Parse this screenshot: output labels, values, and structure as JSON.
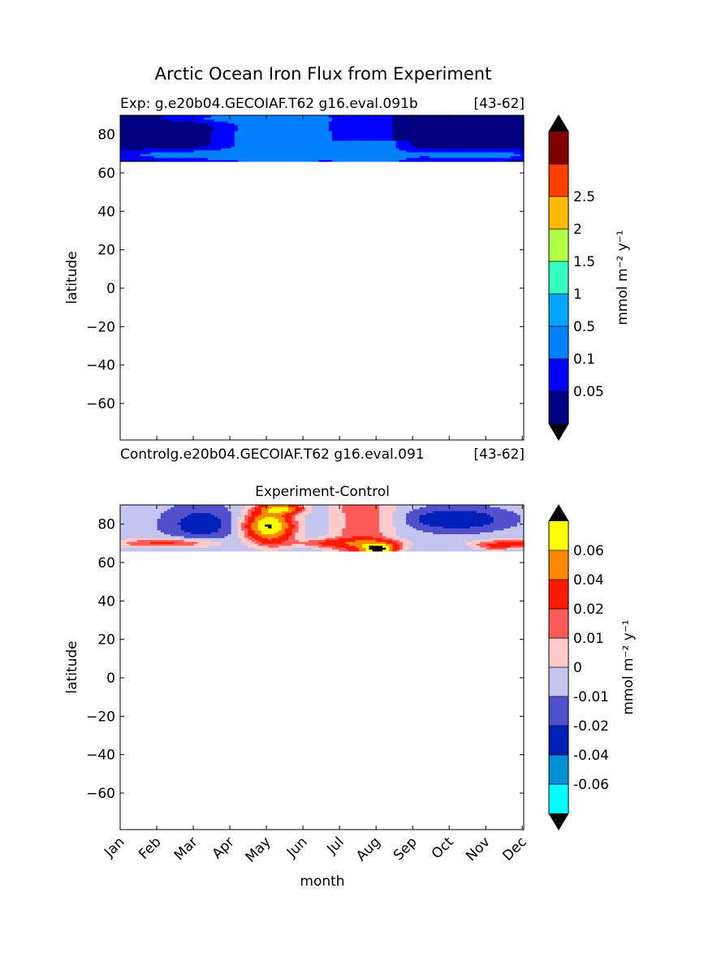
{
  "suptitle": "Arctic Ocean Iron Flux from Experiment",
  "chart_data": [
    {
      "type": "heatmap",
      "panel": "top",
      "title_left": "Exp:    g.e20b04.GECOIAF.T62 g16.eval.091b",
      "title_right": "[43-62]",
      "xlabel": "",
      "ylabel": "latitude",
      "ylim": [
        -79,
        90
      ],
      "yticks": [
        "80",
        "60",
        "40",
        "20",
        "0",
        "−20",
        "−40",
        "−60"
      ],
      "ytick_values": [
        80,
        60,
        40,
        20,
        0,
        -20,
        -40,
        -60
      ],
      "data_lat_range": [
        66,
        90
      ],
      "colorbar": {
        "label": "mmol m⁻² y⁻¹",
        "levels": [
          0,
          0.05,
          0.1,
          0.5,
          1,
          1.5,
          2,
          2.5,
          3
        ],
        "tick_labels": [
          "0.05",
          "0.1",
          "0.5",
          "1",
          "1.5",
          "2",
          "2.5"
        ],
        "colors": [
          "#000080",
          "#0000ff",
          "#0080ff",
          "#00a5ff",
          "#34ffc0",
          "#b0ff46",
          "#ffbc00",
          "#ff3f00",
          "#800000"
        ],
        "extend_color": "#000000"
      }
    },
    {
      "type": "heatmap",
      "panel": "bottom",
      "title": "Experiment-Control",
      "subtitle_left": "Controlg.e20b04.GECOIAF.T62 g16.eval.091",
      "subtitle_right": "[43-62]",
      "xlabel": "month",
      "ylabel": "latitude",
      "ylim": [
        -79,
        90
      ],
      "categories": [
        "Jan",
        "Feb",
        "Mar",
        "Apr",
        "May",
        "Jun",
        "Jul",
        "Aug",
        "Sep",
        "Oct",
        "Nov",
        "Dec"
      ],
      "yticks": [
        "80",
        "60",
        "40",
        "20",
        "0",
        "−20",
        "−40",
        "−60"
      ],
      "ytick_values": [
        80,
        60,
        40,
        20,
        0,
        -20,
        -40,
        -60
      ],
      "data_lat_range": [
        66,
        90
      ],
      "colorbar": {
        "label": "mmol m⁻² y⁻¹",
        "levels": [
          -0.08,
          -0.06,
          -0.04,
          -0.02,
          -0.01,
          0,
          0.01,
          0.02,
          0.04,
          0.06,
          0.08
        ],
        "tick_labels": [
          "-0.06",
          "-0.04",
          "-0.02",
          "-0.01",
          "0",
          "0.01",
          "0.02",
          "0.04",
          "0.06"
        ],
        "colors": [
          "#00ffff",
          "#0090d8",
          "#0020b8",
          "#5050cc",
          "#c4c4ee",
          "#ffcaca",
          "#ff5a5a",
          "#ff1a00",
          "#ff8800",
          "#ffff00"
        ],
        "extend_color": "#000000"
      }
    }
  ]
}
